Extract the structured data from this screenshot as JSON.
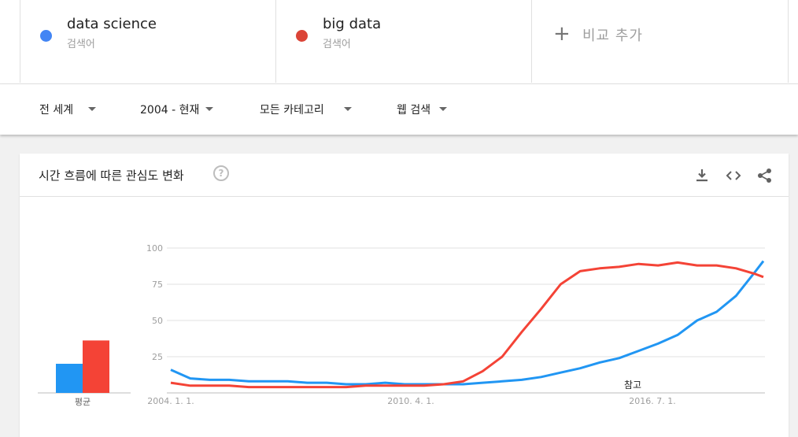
{
  "terms": [
    {
      "name": "data science",
      "sub": "검색어",
      "color": "#4285f4"
    },
    {
      "name": "big data",
      "sub": "검색어",
      "color": "#db4437"
    }
  ],
  "add_compare": {
    "label": "비교 추가"
  },
  "filters": {
    "region": "전 세계",
    "time": "2004 - 현재",
    "category": "모든 카테고리",
    "search_type": "웹 검색"
  },
  "card": {
    "title": "시간 흐름에 따른 관심도 변화",
    "help": "?"
  },
  "average": {
    "label": "평균",
    "data_science": 20,
    "big_data": 36
  },
  "note_label": "참고",
  "chart_data": {
    "type": "line",
    "y_ticks": [
      "100",
      "75",
      "50",
      "25"
    ],
    "ylim": [
      0,
      100
    ],
    "x_tick_labels": [
      "2004. 1. 1.",
      "2010. 4. 1.",
      "2016. 7. 1."
    ],
    "grid": true,
    "series": [
      {
        "name": "data science",
        "color": "#2196f3",
        "x": [
          2004.0,
          2004.5,
          2005.0,
          2005.5,
          2006.0,
          2006.5,
          2007.0,
          2007.5,
          2008.0,
          2008.5,
          2009.0,
          2009.5,
          2010.0,
          2010.5,
          2011.0,
          2011.5,
          2012.0,
          2012.5,
          2013.0,
          2013.5,
          2014.0,
          2014.5,
          2015.0,
          2015.5,
          2016.0,
          2016.5,
          2017.0,
          2017.5,
          2018.0,
          2018.5,
          2019.0,
          2019.2
        ],
        "y": [
          16,
          10,
          9,
          9,
          8,
          8,
          8,
          7,
          7,
          6,
          6,
          7,
          6,
          6,
          6,
          6,
          7,
          8,
          9,
          11,
          14,
          17,
          21,
          24,
          29,
          34,
          40,
          50,
          56,
          67,
          84,
          91
        ]
      },
      {
        "name": "big data",
        "color": "#f44336",
        "x": [
          2004.0,
          2004.5,
          2005.0,
          2005.5,
          2006.0,
          2006.5,
          2007.0,
          2007.5,
          2008.0,
          2008.5,
          2009.0,
          2009.5,
          2010.0,
          2010.5,
          2011.0,
          2011.5,
          2012.0,
          2012.5,
          2013.0,
          2013.5,
          2014.0,
          2014.5,
          2015.0,
          2015.5,
          2016.0,
          2016.5,
          2017.0,
          2017.5,
          2018.0,
          2018.5,
          2019.0,
          2019.2
        ],
        "y": [
          7,
          5,
          5,
          5,
          4,
          4,
          4,
          4,
          4,
          4,
          5,
          5,
          5,
          5,
          6,
          8,
          15,
          25,
          42,
          58,
          75,
          84,
          86,
          87,
          89,
          88,
          90,
          88,
          88,
          86,
          82,
          80
        ]
      }
    ]
  }
}
